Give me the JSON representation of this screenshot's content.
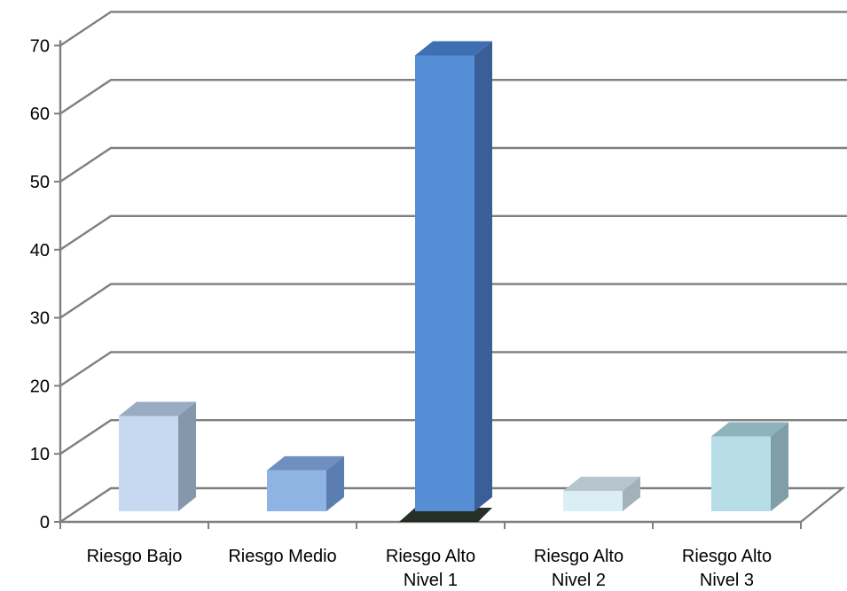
{
  "chart_data": {
    "type": "bar",
    "style": "3d-column",
    "categories": [
      [
        "Riesgo Bajo"
      ],
      [
        "Riesgo Medio"
      ],
      [
        "Riesgo Alto",
        "Nivel 1"
      ],
      [
        "Riesgo Alto",
        "Nivel 2"
      ],
      [
        "Riesgo Alto",
        "Nivel 3"
      ]
    ],
    "values": [
      14,
      6,
      67,
      3,
      11
    ],
    "ylim": [
      0,
      70
    ],
    "yticks": [
      0,
      10,
      20,
      30,
      40,
      50,
      60,
      70
    ],
    "grid": true,
    "legend": "none",
    "colors": {
      "front": [
        "#c6d9f1",
        "#8eb4e3",
        "#558ed5",
        "#dbeef4",
        "#b7dee8"
      ],
      "side": [
        "#8497ab",
        "#5b7db0",
        "#3a5f98",
        "#a3b2b8",
        "#7f9ea6"
      ],
      "top": [
        "#99acc4",
        "#6e8fc0",
        "#3f6fb0",
        "#b7c6cc",
        "#8fb3bb"
      ],
      "gridline": "#7f7f7f"
    }
  }
}
